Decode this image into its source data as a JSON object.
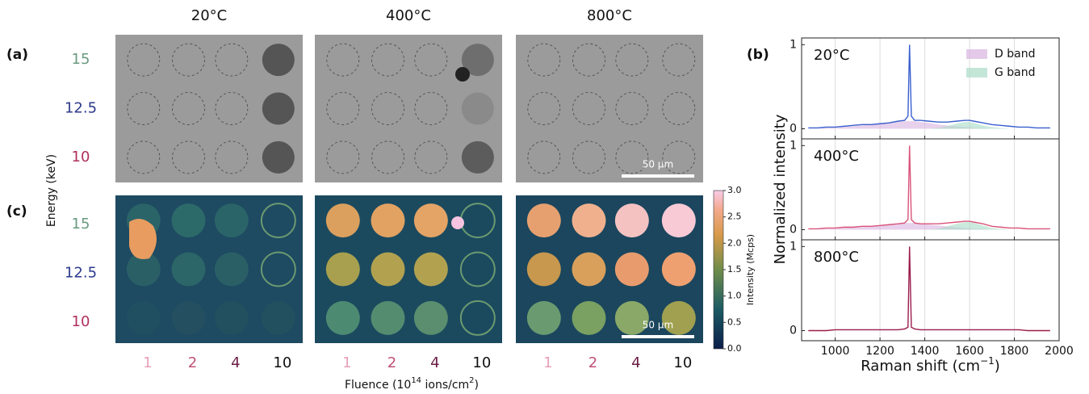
{
  "panel_labels": [
    "(a)",
    "(b)",
    "(c)"
  ],
  "temperatures": [
    "20°C",
    "400°C",
    "800°C"
  ],
  "energy_axis": {
    "label": "Energy (keV)",
    "values": [
      "15",
      "12.5",
      "10"
    ]
  },
  "fluence_axis": {
    "label_parts": [
      "Fluence (10",
      "14",
      " ions/cm",
      "2",
      ")"
    ],
    "values": [
      "1",
      "2",
      "4",
      "10"
    ]
  },
  "scale_bars": [
    "50 µm",
    "50 µm"
  ],
  "colorbar": {
    "label": "Intensity (Mcps)",
    "lim": [
      0,
      3
    ],
    "ticks": [
      {
        "value": 0,
        "label": "0.0"
      },
      {
        "value": 0.5,
        "label": "0.5"
      },
      {
        "value": 1,
        "label": "1.0"
      },
      {
        "value": 1.5,
        "label": "1.5"
      },
      {
        "value": 2,
        "label": "2.0"
      },
      {
        "value": 2.5,
        "label": "2.5"
      },
      {
        "value": 3,
        "label": "3.0"
      }
    ]
  },
  "chart_data": [
    {
      "type": "line",
      "annotation": "20°C",
      "xlim": [
        850,
        2000
      ],
      "xticks": [
        1000,
        1200,
        1400,
        1600,
        1800,
        2000
      ],
      "ylim": [
        -0.12,
        1.08
      ],
      "yticks": [
        0,
        1
      ],
      "grid": true,
      "legend": "upper right",
      "x": [
        880,
        920,
        960,
        1000,
        1040,
        1080,
        1120,
        1160,
        1200,
        1240,
        1280,
        1310,
        1325,
        1332,
        1340,
        1355,
        1380,
        1420,
        1460,
        1500,
        1540,
        1580,
        1600,
        1620,
        1660,
        1700,
        1740,
        1780,
        1820,
        1860,
        1900,
        1940,
        1960
      ],
      "series": [
        {
          "name": "D band",
          "kind": "area",
          "color": "#d9b3e0",
          "values": [
            0,
            0,
            0.01,
            0.01,
            0.02,
            0.03,
            0.04,
            0.05,
            0.06,
            0.07,
            0.08,
            0.09,
            0.09,
            0.09,
            0.09,
            0.09,
            0.08,
            0.07,
            0.05,
            0.04,
            0.03,
            0.02,
            0.02,
            0.01,
            0.01,
            0,
            0,
            0,
            0,
            0,
            0,
            0,
            0
          ]
        },
        {
          "name": "G band",
          "kind": "area",
          "color": "#a9dcc8",
          "values": [
            0,
            0,
            0,
            0,
            0,
            0,
            0,
            0,
            0,
            0,
            0,
            0,
            0,
            0,
            0,
            0,
            0,
            0,
            0.01,
            0.03,
            0.06,
            0.08,
            0.08,
            0.07,
            0.04,
            0.02,
            0.01,
            0,
            0,
            0,
            0,
            0,
            0
          ]
        },
        {
          "kind": "line",
          "color": "#3a5fcd",
          "values": [
            0.01,
            0.01,
            0.02,
            0.02,
            0.03,
            0.04,
            0.05,
            0.05,
            0.06,
            0.07,
            0.09,
            0.1,
            0.15,
            1,
            0.15,
            0.1,
            0.1,
            0.09,
            0.08,
            0.08,
            0.09,
            0.1,
            0.1,
            0.09,
            0.07,
            0.05,
            0.04,
            0.03,
            0.02,
            0.02,
            0.01,
            0.01,
            0.01
          ]
        }
      ]
    },
    {
      "type": "line",
      "annotation": "400°C",
      "ylabel": "Normalized intensity",
      "xlim": [
        850,
        2000
      ],
      "xticks": [
        1000,
        1200,
        1400,
        1600,
        1800,
        2000
      ],
      "ylim": [
        -0.12,
        1.08
      ],
      "yticks": [
        0,
        1
      ],
      "grid": true,
      "x": [
        880,
        920,
        960,
        1000,
        1040,
        1080,
        1120,
        1160,
        1200,
        1240,
        1280,
        1310,
        1325,
        1332,
        1340,
        1355,
        1380,
        1420,
        1460,
        1500,
        1540,
        1580,
        1600,
        1620,
        1660,
        1700,
        1740,
        1780,
        1820,
        1860,
        1900,
        1940,
        1960
      ],
      "series": [
        {
          "kind": "area",
          "color": "#d9b3e0",
          "values": [
            0,
            0,
            0.01,
            0.01,
            0.02,
            0.03,
            0.03,
            0.04,
            0.05,
            0.06,
            0.07,
            0.08,
            0.08,
            0.08,
            0.08,
            0.08,
            0.07,
            0.06,
            0.05,
            0.04,
            0.03,
            0.02,
            0.02,
            0.01,
            0.01,
            0,
            0,
            0,
            0,
            0,
            0,
            0,
            0
          ]
        },
        {
          "kind": "area",
          "color": "#a9dcc8",
          "values": [
            0,
            0,
            0,
            0,
            0,
            0,
            0,
            0,
            0,
            0,
            0,
            0,
            0,
            0,
            0,
            0,
            0,
            0,
            0.01,
            0.04,
            0.07,
            0.09,
            0.09,
            0.08,
            0.05,
            0.02,
            0.01,
            0,
            0,
            0,
            0,
            0,
            0
          ]
        },
        {
          "kind": "line",
          "color": "#d9537a",
          "values": [
            0.01,
            0.01,
            0.02,
            0.02,
            0.03,
            0.03,
            0.04,
            0.04,
            0.05,
            0.06,
            0.07,
            0.08,
            0.12,
            1,
            0.12,
            0.08,
            0.07,
            0.07,
            0.07,
            0.08,
            0.09,
            0.1,
            0.1,
            0.09,
            0.07,
            0.04,
            0.03,
            0.02,
            0.02,
            0.01,
            0.01,
            0.01,
            0.01
          ]
        }
      ]
    },
    {
      "type": "line",
      "annotation": "800°C",
      "xlabel_parts": [
        "Raman shift (cm",
        "−1",
        ")"
      ],
      "xlim": [
        850,
        2000
      ],
      "xticks": [
        1000,
        1200,
        1400,
        1600,
        1800,
        2000
      ],
      "ylim": [
        -0.12,
        1.08
      ],
      "yticks": [
        0,
        1
      ],
      "grid": true,
      "x": [
        880,
        920,
        960,
        1000,
        1040,
        1080,
        1120,
        1160,
        1200,
        1240,
        1280,
        1310,
        1325,
        1332,
        1340,
        1355,
        1380,
        1420,
        1460,
        1500,
        1540,
        1580,
        1600,
        1620,
        1660,
        1700,
        1740,
        1780,
        1820,
        1860,
        1900,
        1940,
        1960
      ],
      "series": [
        {
          "kind": "line",
          "color": "#9b1b4b",
          "values": [
            0,
            0,
            0,
            0.01,
            0.01,
            0.01,
            0.01,
            0.01,
            0.01,
            0.01,
            0.01,
            0.02,
            0.04,
            1,
            0.04,
            0.02,
            0.01,
            0.01,
            0.01,
            0.01,
            0.01,
            0.01,
            0.01,
            0.01,
            0.01,
            0.01,
            0.01,
            0.01,
            0.01,
            0,
            0,
            0,
            0
          ]
        }
      ]
    }
  ]
}
